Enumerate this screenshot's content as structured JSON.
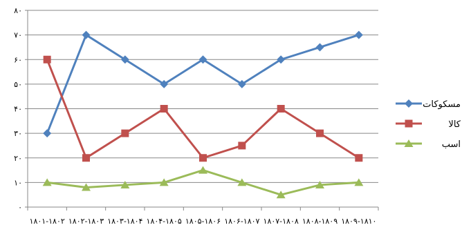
{
  "chart_data": {
    "type": "line",
    "categories": [
      "۱۸۰۱-۱۸۰۲",
      "۱۸۰۲-۱۸۰۳",
      "۱۸۰۳-۱۸۰۴",
      "۱۸۰۴-۱۸۰۵",
      "۱۸۰۵-۱۸۰۶",
      "۱۸۰۶-۱۸۰۷",
      "۱۸۰۷-۱۸۰۸",
      "۱۸۰۸-۱۸۰۹",
      "۱۸۰۹-۱۸۱۰"
    ],
    "y_ticks": [
      "۰",
      "۱۰",
      "۲۰",
      "۳۰",
      "۴۰",
      "۵۰",
      "۶۰",
      "۷۰",
      "۸۰"
    ],
    "ylim": [
      0,
      80
    ],
    "grid": true,
    "legend_position": "right",
    "series": [
      {
        "name": "مسکوکات",
        "color": "#4F81BD",
        "marker": "diamond",
        "values": [
          30,
          70,
          60,
          50,
          60,
          50,
          60,
          65,
          70
        ]
      },
      {
        "name": "کالا",
        "color": "#C0504D",
        "marker": "square",
        "values": [
          60,
          20,
          30,
          40,
          20,
          25,
          40,
          30,
          20
        ]
      },
      {
        "name": "اسب",
        "color": "#9BBB59",
        "marker": "triangle",
        "values": [
          10,
          8,
          9,
          10,
          15,
          10,
          5,
          9,
          10
        ]
      }
    ]
  }
}
